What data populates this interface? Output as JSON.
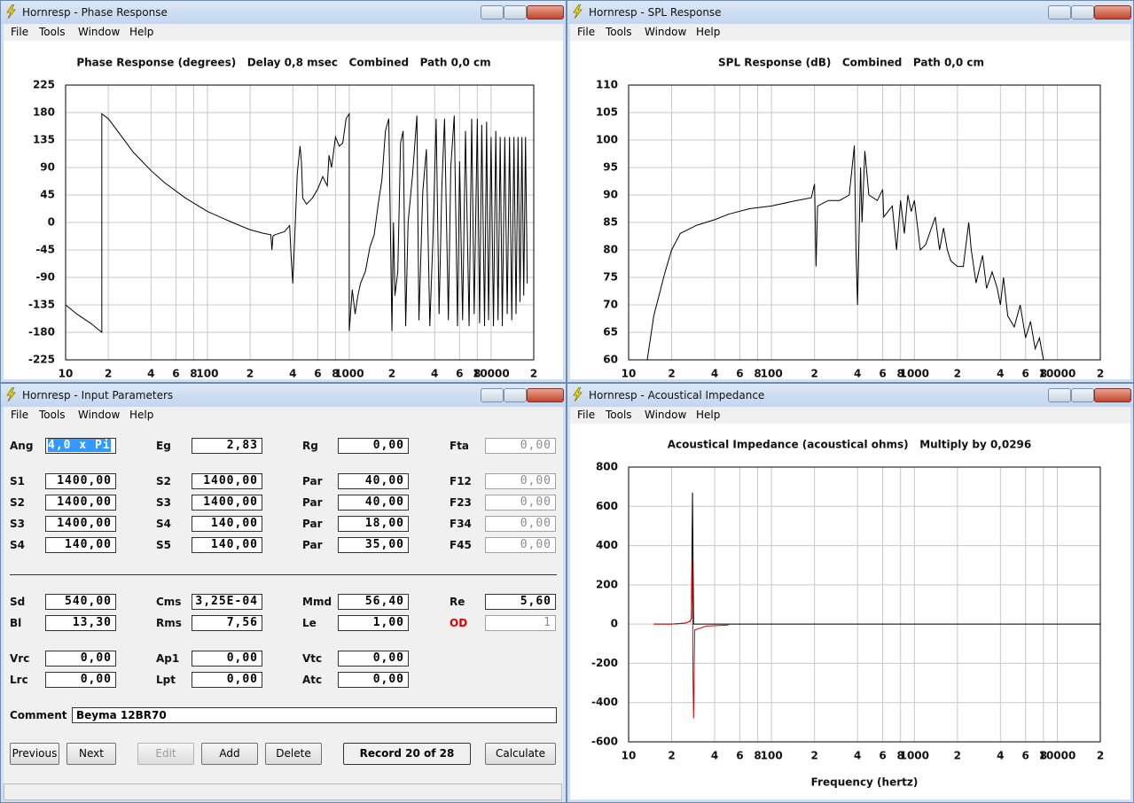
{
  "windows": [
    {
      "title": "Hornresp - Phase Response",
      "menu": [
        "File",
        "Tools",
        "Window",
        "Help"
      ]
    },
    {
      "title": "Hornresp - SPL Response",
      "menu": [
        "File",
        "Tools",
        "Window",
        "Help"
      ]
    },
    {
      "title": "Hornresp - Input Parameters",
      "menu": [
        "File",
        "Tools",
        "Window",
        "Help"
      ]
    },
    {
      "title": "Hornresp - Acoustical Impedance",
      "menu": [
        "File",
        "Tools",
        "Window",
        "Help"
      ]
    }
  ],
  "chart_data": [
    {
      "type": "line",
      "title": "Phase Response (degrees)   Delay 0,8 msec   Combined   Path 0,0 cm",
      "xscale": "log",
      "grid": true,
      "xlim": [
        10,
        20000
      ],
      "ylim": [
        -225,
        225
      ],
      "xticks": [
        10,
        {
          "value": 20,
          "label": "2"
        },
        {
          "value": 40,
          "label": "4"
        },
        {
          "value": 60,
          "label": "6"
        },
        {
          "value": 80,
          "label": "8"
        },
        100,
        {
          "value": 200,
          "label": "2"
        },
        {
          "value": 400,
          "label": "4"
        },
        {
          "value": 600,
          "label": "6"
        },
        {
          "value": 800,
          "label": "8"
        },
        1000,
        {
          "value": 2000,
          "label": "2"
        },
        {
          "value": 4000,
          "label": "4"
        },
        {
          "value": 6000,
          "label": "6"
        },
        {
          "value": 8000,
          "label": "8"
        },
        10000,
        {
          "value": 20000,
          "label": "2"
        }
      ],
      "yticks": [
        225,
        180,
        135,
        90,
        45,
        0,
        -45,
        -90,
        -135,
        -180,
        -225
      ],
      "series": [
        {
          "color": "#000000",
          "x": [
            10,
            12,
            15,
            18,
            18,
            20,
            25,
            30,
            40,
            50,
            70,
            100,
            150,
            200,
            250,
            280,
            285,
            290,
            300,
            350,
            380,
            390,
            400,
            410,
            430,
            450,
            460,
            470,
            500,
            550,
            600,
            650,
            700,
            720,
            750,
            800,
            850,
            900,
            950,
            1000,
            1000,
            1050,
            1100,
            1150,
            1200,
            1300,
            1400,
            1500,
            1600,
            1700,
            1800,
            1900,
            2000,
            2050,
            2100,
            2200,
            2300,
            2400,
            2500,
            2600,
            2800,
            3000,
            3100,
            3300,
            3500,
            3700,
            3900,
            4100,
            4300,
            4500,
            4700,
            5000,
            5200,
            5500,
            5800,
            6000,
            6300,
            6600,
            7000,
            7300,
            7600,
            8000,
            8300,
            8600,
            9000,
            9300,
            9600,
            10000,
            10400,
            10800,
            11200,
            11600,
            12000,
            12500,
            13000,
            13500,
            14000,
            14500,
            15000,
            15500,
            16000,
            16500,
            17000,
            17500,
            18000
          ],
          "values": [
            -135,
            -150,
            -165,
            -180,
            178,
            170,
            140,
            115,
            85,
            65,
            40,
            18,
            0,
            -12,
            -18,
            -20,
            -45,
            -22,
            -20,
            -15,
            -5,
            -60,
            -100,
            -40,
            80,
            125,
            100,
            40,
            30,
            40,
            55,
            75,
            60,
            110,
            90,
            140,
            125,
            130,
            170,
            178,
            -178,
            -110,
            -150,
            -120,
            -100,
            -80,
            -40,
            -20,
            30,
            70,
            150,
            170,
            -178,
            0,
            -120,
            -80,
            130,
            150,
            -170,
            0,
            80,
            175,
            -160,
            50,
            120,
            -170,
            -20,
            170,
            -150,
            60,
            170,
            -160,
            90,
            175,
            -170,
            100,
            -160,
            150,
            -170,
            170,
            -150,
            170,
            -165,
            160,
            -170,
            165,
            -160,
            140,
            -170,
            150,
            -160,
            140,
            -170,
            140,
            -150,
            140,
            -160,
            140,
            -150,
            140,
            -130,
            140,
            -120,
            140,
            -100
          ]
        }
      ]
    },
    {
      "type": "line",
      "title": "SPL Response (dB)   Combined   Path 0,0 cm",
      "xscale": "log",
      "grid": true,
      "xlim": [
        10,
        20000
      ],
      "ylim": [
        60,
        110
      ],
      "xticks": [
        10,
        {
          "value": 20,
          "label": "2"
        },
        {
          "value": 40,
          "label": "4"
        },
        {
          "value": 60,
          "label": "6"
        },
        {
          "value": 80,
          "label": "8"
        },
        100,
        {
          "value": 200,
          "label": "2"
        },
        {
          "value": 400,
          "label": "4"
        },
        {
          "value": 600,
          "label": "6"
        },
        {
          "value": 800,
          "label": "8"
        },
        1000,
        {
          "value": 2000,
          "label": "2"
        },
        {
          "value": 4000,
          "label": "4"
        },
        {
          "value": 6000,
          "label": "6"
        },
        {
          "value": 8000,
          "label": "8"
        },
        10000,
        {
          "value": 20000,
          "label": "2"
        }
      ],
      "yticks": [
        110,
        105,
        100,
        95,
        90,
        85,
        80,
        75,
        70,
        65,
        60
      ],
      "series": [
        {
          "color": "#000000",
          "x": [
            13.5,
            15,
            18,
            20,
            23,
            30,
            40,
            50,
            70,
            100,
            150,
            190,
            200,
            205,
            210,
            250,
            300,
            350,
            380,
            390,
            400,
            420,
            430,
            450,
            480,
            550,
            600,
            610,
            700,
            750,
            800,
            850,
            900,
            950,
            1000,
            1100,
            1200,
            1400,
            1500,
            1600,
            1700,
            1800,
            2000,
            2200,
            2400,
            2500,
            2700,
            3000,
            3200,
            3500,
            3800,
            4000,
            4200,
            4500,
            5000,
            5500,
            6000,
            6500,
            7000,
            7500,
            8000
          ],
          "values": [
            60,
            68,
            76,
            80,
            83,
            84.5,
            85.5,
            86.5,
            87.5,
            88,
            89,
            89.5,
            92,
            77,
            88,
            89,
            89,
            90,
            99,
            80,
            70,
            95,
            85,
            98,
            90,
            89,
            91,
            86,
            88,
            80,
            89,
            83,
            90,
            87,
            89,
            80,
            81,
            86,
            80,
            84,
            80,
            78,
            77,
            77,
            85,
            80,
            74,
            79,
            73,
            76,
            73,
            70,
            75,
            68,
            66,
            70,
            64,
            67,
            62,
            64,
            60
          ]
        }
      ]
    },
    {
      "type": "line",
      "title": "Acoustical Impedance (acoustical ohms)   Multiply by 0,0296",
      "xlabel": "Frequency (hertz)",
      "xscale": "log",
      "grid": true,
      "xlim": [
        10,
        20000
      ],
      "ylim": [
        -600,
        800
      ],
      "xticks": [
        10,
        {
          "value": 20,
          "label": "2"
        },
        {
          "value": 40,
          "label": "4"
        },
        {
          "value": 60,
          "label": "6"
        },
        {
          "value": 80,
          "label": "8"
        },
        100,
        {
          "value": 200,
          "label": "2"
        },
        {
          "value": 400,
          "label": "4"
        },
        {
          "value": 600,
          "label": "6"
        },
        {
          "value": 800,
          "label": "8"
        },
        1000,
        {
          "value": 2000,
          "label": "2"
        },
        {
          "value": 4000,
          "label": "4"
        },
        {
          "value": 6000,
          "label": "6"
        },
        {
          "value": 8000,
          "label": "8"
        },
        10000,
        {
          "value": 20000,
          "label": "2"
        }
      ],
      "yticks": [
        800,
        600,
        400,
        200,
        0,
        -200,
        -400,
        -600
      ],
      "series": [
        {
          "color": "#000000",
          "x": [
            15,
            20,
            25,
            27,
            27.5,
            28,
            28.5,
            29,
            35,
            50,
            20000
          ],
          "values": [
            0,
            0,
            5,
            15,
            30,
            670,
            0,
            0,
            0,
            0,
            0
          ]
        },
        {
          "color": "#e00000",
          "x": [
            15,
            20,
            25,
            27,
            27.5,
            28,
            28.2,
            28.5,
            29,
            35,
            50
          ],
          "values": [
            0,
            0,
            5,
            15,
            30,
            330,
            -270,
            -480,
            -30,
            -10,
            -5
          ]
        }
      ]
    }
  ],
  "input_parameters": {
    "rows": [
      [
        {
          "label": "Ang",
          "value": "4,0 x Pi"
        },
        {
          "label": "Eg",
          "value": "2,83"
        },
        {
          "label": "Rg",
          "value": "0,00"
        },
        {
          "label": "Fta",
          "value": "0,00"
        }
      ],
      [
        {
          "label": "S1",
          "value": "1400,00"
        },
        {
          "label": "S2",
          "value": "1400,00"
        },
        {
          "label": "Par",
          "value": "40,00"
        },
        {
          "label": "F12",
          "value": "0,00"
        }
      ],
      [
        {
          "label": "S2",
          "value": "1400,00"
        },
        {
          "label": "S3",
          "value": "1400,00"
        },
        {
          "label": "Par",
          "value": "40,00"
        },
        {
          "label": "F23",
          "value": "0,00"
        }
      ],
      [
        {
          "label": "S3",
          "value": "1400,00"
        },
        {
          "label": "S4",
          "value": "140,00"
        },
        {
          "label": "Par",
          "value": "18,00"
        },
        {
          "label": "F34",
          "value": "0,00"
        }
      ],
      [
        {
          "label": "S4",
          "value": "140,00"
        },
        {
          "label": "S5",
          "value": "140,00"
        },
        {
          "label": "Par",
          "value": "35,00"
        },
        {
          "label": "F45",
          "value": "0,00"
        }
      ],
      [
        {
          "label": "Sd",
          "value": "540,00"
        },
        {
          "label": "Cms",
          "value": "3,25E-04"
        },
        {
          "label": "Mmd",
          "value": "56,40"
        },
        {
          "label": "Re",
          "value": "5,60"
        }
      ],
      [
        {
          "label": "Bl",
          "value": "13,30"
        },
        {
          "label": "Rms",
          "value": "7,56"
        },
        {
          "label": "Le",
          "value": "1,00"
        },
        {
          "label": "OD",
          "value": "1"
        }
      ],
      [
        {
          "label": "Vrc",
          "value": "0,00"
        },
        {
          "label": "Ap1",
          "value": "0,00"
        },
        {
          "label": "Vtc",
          "value": "0,00"
        }
      ],
      [
        {
          "label": "Lrc",
          "value": "0,00"
        },
        {
          "label": "Lpt",
          "value": "0,00"
        },
        {
          "label": "Atc",
          "value": "0,00"
        }
      ]
    ],
    "comment_label": "Comment",
    "comment": "Beyma 12BR70",
    "buttons": [
      "Previous",
      "Next",
      "Edit",
      "Add",
      "Delete",
      "Calculate"
    ],
    "record": "Record 20 of 28"
  }
}
